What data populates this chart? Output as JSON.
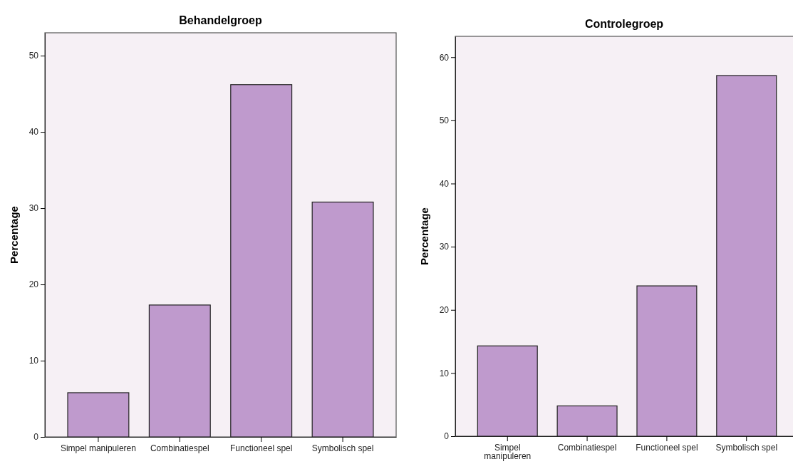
{
  "chart_data": [
    {
      "type": "bar",
      "title": "Behandelgroep",
      "ylabel": "Percentage",
      "categories": [
        "Simpel manipuleren",
        "Combinatiespel",
        "Functioneel spel",
        "Symbolisch spel"
      ],
      "values": [
        5.8,
        17.3,
        46.2,
        30.8
      ],
      "color": "#bf9acd",
      "ylim": [
        0,
        53
      ],
      "yticks": [
        0,
        10,
        20,
        30,
        40,
        50
      ]
    },
    {
      "type": "bar",
      "title": "Controlegroep",
      "ylabel": "Percentage",
      "categories": [
        "Simpel manipuleren",
        "Combinatiespel",
        "Functioneel spel",
        "Symbolisch spel"
      ],
      "values": [
        14.3,
        4.8,
        23.8,
        57.1
      ],
      "color": "#bf9acd",
      "ylim": [
        0,
        63.3
      ],
      "yticks": [
        0,
        10,
        20,
        30,
        40,
        50,
        60
      ]
    }
  ]
}
